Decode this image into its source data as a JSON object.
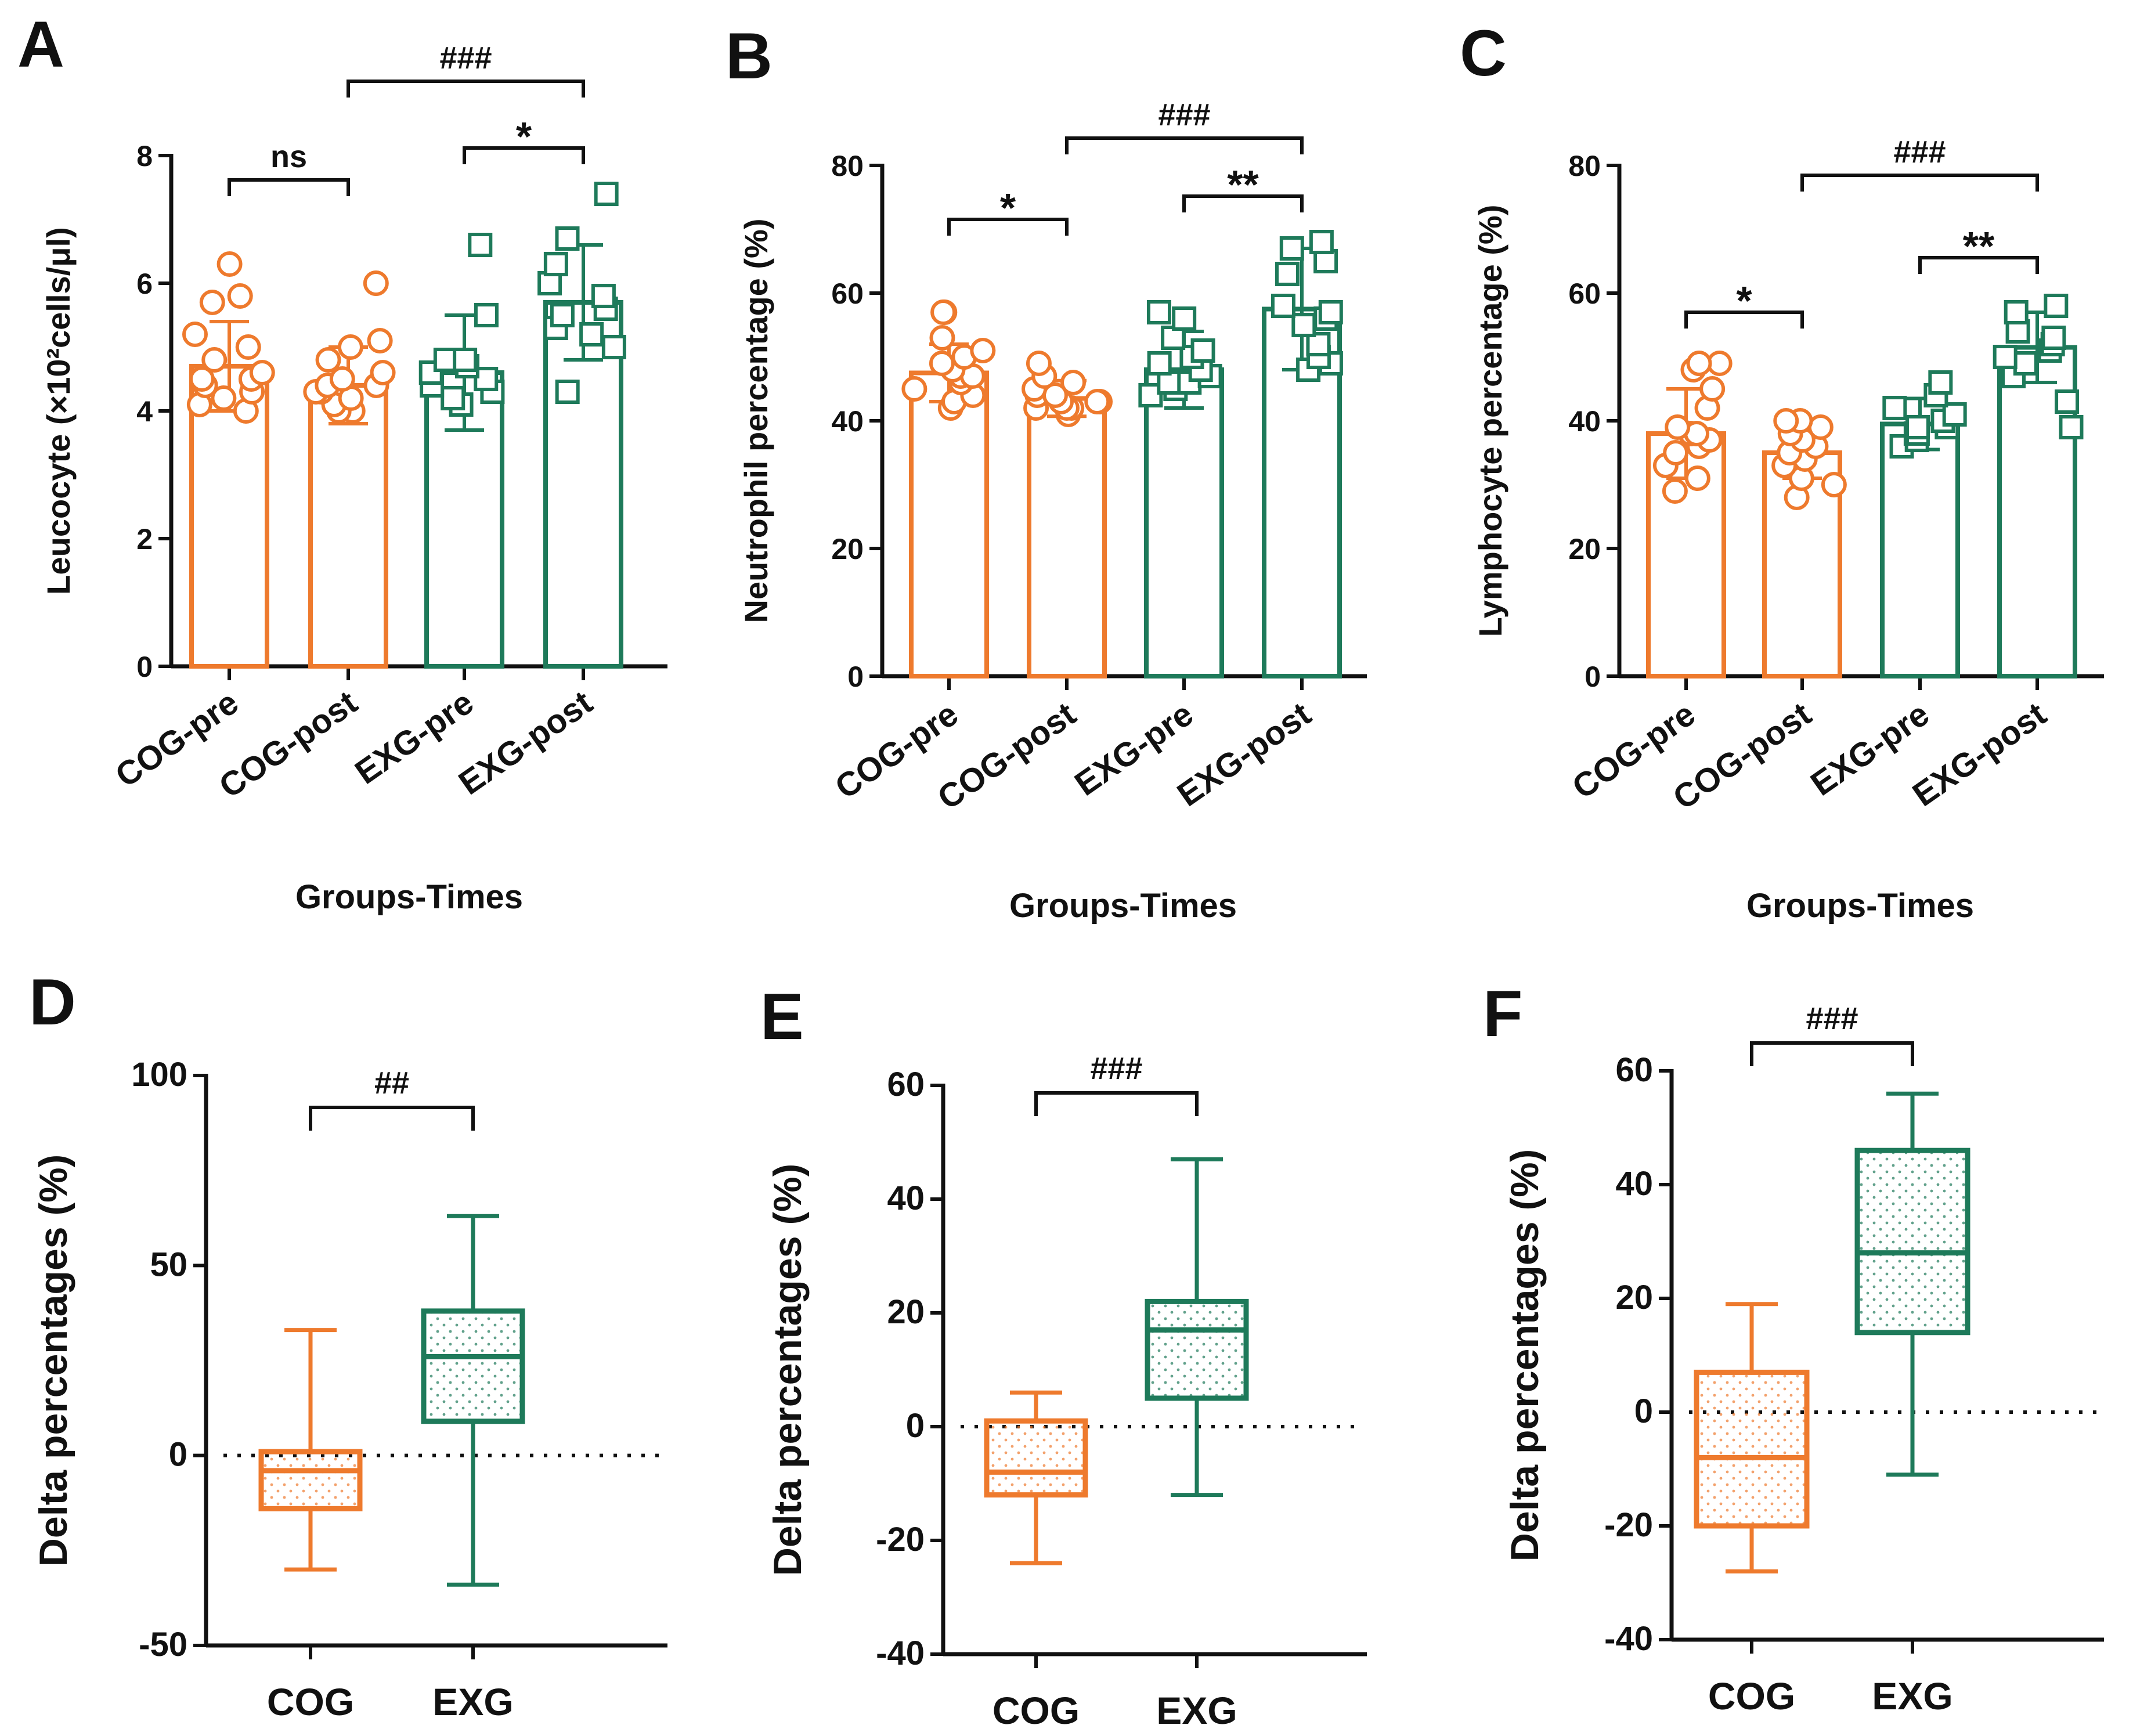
{
  "colors": {
    "cog": "#EE7A2D",
    "exg": "#1E7A5A",
    "ink": "#111111"
  },
  "chart_data": [
    {
      "panel": "A",
      "type": "bar",
      "ylabel": "Leucocyte (×10²cells/μl)",
      "xlabel": "Groups-Times",
      "ylim": [
        0,
        8
      ],
      "yticks": [
        0,
        2,
        4,
        6,
        8
      ],
      "categories": [
        "COG-pre",
        "COG-post",
        "EXG-pre",
        "EXG-post"
      ],
      "groups": [
        "cog",
        "cog",
        "exg",
        "exg"
      ],
      "means": [
        4.7,
        4.4,
        4.6,
        5.7
      ],
      "sd": [
        0.7,
        0.6,
        0.9,
        0.9
      ],
      "points": [
        [
          4.0,
          4.1,
          4.2,
          4.3,
          4.4,
          4.5,
          4.5,
          4.6,
          4.8,
          5.0,
          5.2,
          5.7,
          5.8,
          6.3
        ],
        [
          4.0,
          4.0,
          4.1,
          4.2,
          4.3,
          4.3,
          4.4,
          4.4,
          4.5,
          4.6,
          4.8,
          5.0,
          5.1,
          6.0
        ],
        [
          4.1,
          4.2,
          4.3,
          4.4,
          4.5,
          4.6,
          4.7,
          4.8,
          4.8,
          5.5,
          6.6
        ],
        [
          4.3,
          5.0,
          5.2,
          5.3,
          5.5,
          5.6,
          5.8,
          6.0,
          6.3,
          6.7,
          7.4
        ]
      ],
      "brackets": [
        {
          "from": 0,
          "to": 1,
          "label": "ns"
        },
        {
          "from": 2,
          "to": 3,
          "label": "*"
        },
        {
          "from": 1,
          "to": 3,
          "label": "###"
        }
      ]
    },
    {
      "panel": "B",
      "type": "bar",
      "ylabel": "Neutrophil percentage (%)",
      "xlabel": "Groups-Times",
      "ylim": [
        0,
        80
      ],
      "yticks": [
        0,
        20,
        40,
        60,
        80
      ],
      "categories": [
        "COG-pre",
        "COG-post",
        "EXG-pre",
        "EXG-post"
      ],
      "groups": [
        "cog",
        "cog",
        "exg",
        "exg"
      ],
      "means": [
        47.5,
        43.5,
        48.0,
        57.5
      ],
      "sd": [
        4.5,
        2.8,
        6.0,
        9.5
      ],
      "points": [
        [
          42,
          43,
          44,
          45,
          46,
          47,
          47,
          48,
          49,
          50,
          51,
          53,
          57,
          57
        ],
        [
          41,
          42,
          42,
          42,
          43,
          43,
          43,
          44,
          44,
          45,
          46,
          47,
          49
        ],
        [
          44,
          45,
          46,
          46,
          47,
          48,
          49,
          50,
          51,
          53,
          56,
          57
        ],
        [
          48,
          49,
          50,
          52,
          55,
          56,
          57,
          58,
          63,
          65,
          67,
          68
        ]
      ],
      "brackets": [
        {
          "from": 0,
          "to": 1,
          "label": "*"
        },
        {
          "from": 2,
          "to": 3,
          "label": "**"
        },
        {
          "from": 1,
          "to": 3,
          "label": "###"
        }
      ]
    },
    {
      "panel": "C",
      "type": "bar",
      "ylabel": "Lymphocyte percentage (%)",
      "xlabel": "Groups-Times",
      "ylim": [
        0,
        80
      ],
      "yticks": [
        0,
        20,
        40,
        60,
        80
      ],
      "categories": [
        "COG-pre",
        "COG-post",
        "EXG-pre",
        "EXG-post"
      ],
      "groups": [
        "cog",
        "cog",
        "exg",
        "exg"
      ],
      "means": [
        38.0,
        35.0,
        39.5,
        51.5
      ],
      "sd": [
        7.0,
        4.0,
        4.0,
        5.5
      ],
      "points": [
        [
          29,
          31,
          33,
          35,
          36,
          37,
          38,
          38,
          39,
          42,
          45,
          48,
          49,
          49
        ],
        [
          28,
          30,
          31,
          33,
          34,
          35,
          36,
          37,
          38,
          39,
          40,
          40
        ],
        [
          36,
          37,
          38,
          38,
          39,
          39,
          40,
          41,
          42,
          44,
          46
        ],
        [
          39,
          43,
          47,
          49,
          50,
          51,
          52,
          53,
          54,
          57,
          58
        ]
      ],
      "brackets": [
        {
          "from": 0,
          "to": 1,
          "label": "*"
        },
        {
          "from": 2,
          "to": 3,
          "label": "**"
        },
        {
          "from": 1,
          "to": 3,
          "label": "###"
        }
      ]
    },
    {
      "panel": "D",
      "type": "box",
      "ylabel": "Delta percentages (%)",
      "ylim": [
        -50,
        100
      ],
      "yticks": [
        -50,
        0,
        50,
        100
      ],
      "categories": [
        "COG",
        "EXG"
      ],
      "groups": [
        "cog",
        "exg"
      ],
      "boxes": [
        {
          "min": -30,
          "q1": -14,
          "median": -4,
          "q3": 1,
          "max": 33
        },
        {
          "min": -34,
          "q1": 9,
          "median": 26,
          "q3": 38,
          "max": 63
        }
      ],
      "reference_line": 0,
      "brackets": [
        {
          "from": 0,
          "to": 1,
          "label": "##"
        }
      ]
    },
    {
      "panel": "E",
      "type": "box",
      "ylabel": "Delta percentages (%)",
      "ylim": [
        -40,
        60
      ],
      "yticks": [
        -40,
        -20,
        0,
        20,
        40,
        60
      ],
      "categories": [
        "COG",
        "EXG"
      ],
      "groups": [
        "cog",
        "exg"
      ],
      "boxes": [
        {
          "min": -24,
          "q1": -12,
          "median": -8,
          "q3": 1,
          "max": 6
        },
        {
          "min": -12,
          "q1": 5,
          "median": 17,
          "q3": 22,
          "max": 47
        }
      ],
      "reference_line": 0,
      "brackets": [
        {
          "from": 0,
          "to": 1,
          "label": "###"
        }
      ]
    },
    {
      "panel": "F",
      "type": "box",
      "ylabel": "Delta percentages (%)",
      "ylim": [
        -40,
        60
      ],
      "yticks": [
        -40,
        -20,
        0,
        20,
        40,
        60
      ],
      "categories": [
        "COG",
        "EXG"
      ],
      "groups": [
        "cog",
        "exg"
      ],
      "boxes": [
        {
          "min": -28,
          "q1": -20,
          "median": -8,
          "q3": 7,
          "max": 19
        },
        {
          "min": -11,
          "q1": 14,
          "median": 28,
          "q3": 46,
          "max": 56
        }
      ],
      "reference_line": 0,
      "brackets": [
        {
          "from": 0,
          "to": 1,
          "label": "###"
        }
      ]
    }
  ]
}
